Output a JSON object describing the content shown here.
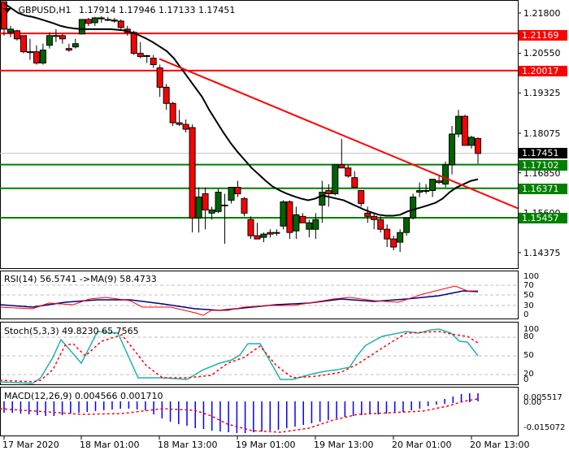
{
  "header": {
    "symbol_tf": "GBPUSD,H1",
    "values": "1.17914 1.17946 1.17133 1.17451",
    "menu_icon": "triangle-down"
  },
  "colors": {
    "bull": "#006400",
    "bear": "#ff0000",
    "support": "#008000",
    "resistance": "#ff0000",
    "ma": "#000000",
    "rsi": "#ff0000",
    "rsi_ma": "#000080",
    "stoch_main": "#20b2aa",
    "stoch_signal": "#ff0000",
    "macd_hist": "#0000ff",
    "macd_signal": "#ff0000"
  },
  "price_axis": {
    "ticks": [
      "1.21800",
      "1.20550",
      "1.19325",
      "1.18075",
      "1.16850",
      "1.15600",
      "1.14375"
    ]
  },
  "levels": [
    {
      "label": "1.21169",
      "type": "resistance"
    },
    {
      "label": "1.20017",
      "type": "resistance"
    },
    {
      "label": "1.17451",
      "type": "current"
    },
    {
      "label": "1.17102",
      "type": "support"
    },
    {
      "label": "1.16371",
      "type": "support"
    },
    {
      "label": "1.15457",
      "type": "support"
    }
  ],
  "rsi": {
    "title": "RSI(14) 56.5741  ->MA(9) 58.4733",
    "ticks": [
      "100",
      "70",
      "50",
      "30",
      "0"
    ]
  },
  "stoch": {
    "title": "Stoch(5,3,3) 49.8230 65.7565",
    "ticks": [
      "100",
      "80",
      "50",
      "20",
      "0"
    ]
  },
  "macd": {
    "title": "MACD(12,26,9) 0.004566 0.001710",
    "ticks": [
      "0.005517",
      "0.00",
      "-0.015072"
    ]
  },
  "time_axis": {
    "labels": [
      "17 Mar 2020",
      "18 Mar 01:00",
      "18 Mar 13:00",
      "19 Mar 01:00",
      "19 Mar 13:00",
      "20 Mar 01:00",
      "20 Mar 13:00"
    ]
  },
  "chart_data": {
    "type": "candlestick",
    "title": "GBPUSD,H1",
    "ohlc_last": {
      "open": 1.17914,
      "high": 1.17946,
      "low": 1.17133,
      "close": 1.17451
    },
    "ylim": [
      1.139,
      1.222
    ],
    "horizontal_levels": [
      1.21169,
      1.20017,
      1.17102,
      1.16371,
      1.15457
    ],
    "trendline": {
      "from": 1.2038,
      "to": 1.1575
    },
    "candles": [
      [
        1.2215,
        1.2215,
        1.211,
        1.213
      ],
      [
        1.212,
        1.214,
        1.2105,
        1.213
      ],
      [
        1.2125,
        1.2128,
        1.2095,
        1.21
      ],
      [
        1.211,
        1.211,
        1.2055,
        1.206
      ],
      [
        1.206,
        1.21,
        1.2035,
        1.206
      ],
      [
        1.206,
        1.208,
        1.202,
        1.2025
      ],
      [
        1.2025,
        1.2085,
        1.202,
        1.2065
      ],
      [
        1.208,
        1.212,
        1.207,
        1.211
      ],
      [
        1.211,
        1.213,
        1.209,
        1.211
      ],
      [
        1.211,
        1.2115,
        1.2085,
        1.21
      ],
      [
        1.207,
        1.2085,
        1.206,
        1.2065
      ],
      [
        1.2075,
        1.21,
        1.207,
        1.2085
      ],
      [
        1.2115,
        1.2135,
        1.2115,
        1.216
      ],
      [
        1.216,
        1.2165,
        1.214,
        1.2148
      ],
      [
        1.215,
        1.2168,
        1.214,
        1.2165
      ],
      [
        1.2162,
        1.217,
        1.215,
        1.2165
      ],
      [
        1.216,
        1.2168,
        1.2155,
        1.2158
      ],
      [
        1.2158,
        1.2165,
        1.215,
        1.2155
      ],
      [
        1.2155,
        1.216,
        1.213,
        1.2135
      ],
      [
        1.213,
        1.214,
        1.211,
        1.212
      ],
      [
        1.212,
        1.2125,
        1.205,
        1.2055
      ],
      [
        1.2055,
        1.209,
        1.204,
        1.2045
      ],
      [
        1.2048,
        1.205,
        1.2025,
        1.2048
      ],
      [
        1.204,
        1.205,
        1.201,
        1.202
      ],
      [
        1.201,
        1.202,
        1.192,
        1.195
      ],
      [
        1.195,
        1.196,
        1.188,
        1.19
      ],
      [
        1.19,
        1.1905,
        1.183,
        1.184
      ],
      [
        1.184,
        1.188,
        1.183,
        1.1835
      ],
      [
        1.1835,
        1.185,
        1.181,
        1.182
      ],
      [
        1.1825,
        1.1835,
        1.15,
        1.1545
      ],
      [
        1.1545,
        1.164,
        1.15,
        1.161
      ],
      [
        1.162,
        1.164,
        1.151,
        1.157
      ],
      [
        1.156,
        1.158,
        1.154,
        1.157
      ],
      [
        1.1565,
        1.1635,
        1.156,
        1.1625
      ],
      [
        1.1585,
        1.162,
        1.1465,
        1.1585
      ],
      [
        1.16,
        1.164,
        1.159,
        1.164
      ],
      [
        1.164,
        1.166,
        1.161,
        1.162
      ],
      [
        1.1605,
        1.161,
        1.155,
        1.156
      ],
      [
        1.154,
        1.155,
        1.148,
        1.149
      ],
      [
        1.149,
        1.153,
        1.148,
        1.148
      ],
      [
        1.1485,
        1.15,
        1.147,
        1.1495
      ],
      [
        1.15,
        1.151,
        1.1485,
        1.1495
      ],
      [
        1.15,
        1.151,
        1.149,
        1.15
      ],
      [
        1.152,
        1.16,
        1.151,
        1.1595
      ],
      [
        1.1595,
        1.16,
        1.148,
        1.15
      ],
      [
        1.1505,
        1.158,
        1.148,
        1.1555
      ],
      [
        1.155,
        1.156,
        1.154,
        1.153
      ],
      [
        1.151,
        1.154,
        1.1485,
        1.153
      ],
      [
        1.151,
        1.156,
        1.148,
        1.154
      ],
      [
        1.1585,
        1.166,
        1.153,
        1.1625
      ],
      [
        1.163,
        1.165,
        1.158,
        1.162
      ],
      [
        1.162,
        1.17,
        1.1615,
        1.171
      ],
      [
        1.171,
        1.179,
        1.1705,
        1.17
      ],
      [
        1.17,
        1.171,
        1.167,
        1.1675
      ],
      [
        1.167,
        1.169,
        1.165,
        1.164
      ],
      [
        1.163,
        1.16,
        1.158,
        1.159
      ],
      [
        1.156,
        1.158,
        1.153,
        1.155
      ],
      [
        1.155,
        1.156,
        1.151,
        1.154
      ],
      [
        1.154,
        1.155,
        1.15,
        1.151
      ],
      [
        1.151,
        1.1525,
        1.1455,
        1.148
      ],
      [
        1.148,
        1.149,
        1.1445,
        1.1455
      ],
      [
        1.147,
        1.151,
        1.144,
        1.15
      ],
      [
        1.15,
        1.154,
        1.149,
        1.1545
      ],
      [
        1.1545,
        1.162,
        1.154,
        1.161
      ],
      [
        1.1625,
        1.1655,
        1.161,
        1.163
      ],
      [
        1.163,
        1.165,
        1.162,
        1.163
      ],
      [
        1.163,
        1.1665,
        1.161,
        1.1665
      ],
      [
        1.166,
        1.1675,
        1.165,
        1.1655
      ],
      [
        1.165,
        1.172,
        1.164,
        1.171
      ],
      [
        1.171,
        1.183,
        1.168,
        1.1805
      ],
      [
        1.1805,
        1.188,
        1.1795,
        1.186
      ],
      [
        1.186,
        1.1865,
        1.179,
        1.177
      ],
      [
        1.177,
        1.18,
        1.176,
        1.1795
      ],
      [
        1.1791,
        1.1795,
        1.1713,
        1.1745
      ]
    ],
    "ma_line": [
      1.221,
      1.2195,
      1.218,
      1.2172,
      1.2168,
      1.2162,
      1.2155,
      1.2148,
      1.214,
      1.2135,
      1.2132,
      1.213,
      1.213,
      1.213,
      1.213,
      1.213,
      1.2128,
      1.2126,
      1.212,
      1.2112,
      1.2102,
      1.209,
      1.2076,
      1.2062,
      1.204,
      1.201,
      1.198,
      1.195,
      1.192,
      1.188,
      1.1845,
      1.181,
      1.1778,
      1.175,
      1.1725,
      1.17,
      1.168,
      1.166,
      1.1642,
      1.163,
      1.162,
      1.1612,
      1.1605,
      1.16,
      1.1605,
      1.1615,
      1.161,
      1.1605,
      1.16,
      1.159,
      1.158,
      1.157,
      1.1562,
      1.1555,
      1.1552,
      1.1552,
      1.1555,
      1.1565,
      1.1572,
      1.1578,
      1.1585,
      1.1592,
      1.1605,
      1.1625,
      1.164,
      1.165,
      1.166,
      1.1665
    ],
    "rsi_series": {
      "name": "RSI(14)",
      "last": 56.5741,
      "range": [
        0,
        100
      ]
    },
    "stoch_series": {
      "main_last": 49.823,
      "signal_last": 65.7565,
      "range": [
        0,
        100
      ]
    },
    "macd_series": {
      "macd_last": 0.004566,
      "signal_last": 0.00171,
      "range": [
        -0.015072,
        0.005517
      ]
    }
  }
}
